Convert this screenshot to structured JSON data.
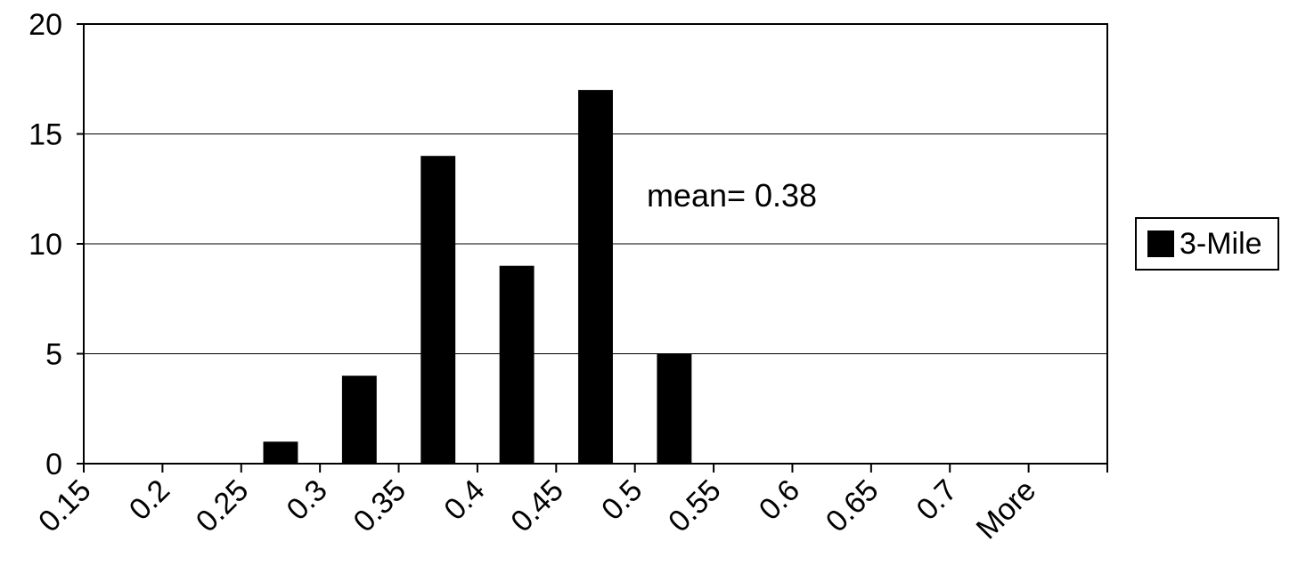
{
  "chart_data": {
    "type": "bar",
    "categories": [
      "0.15",
      "0.2",
      "0.25",
      "0.3",
      "0.35",
      "0.4",
      "0.45",
      "0.5",
      "0.55",
      "0.6",
      "0.65",
      "0.7",
      "More"
    ],
    "series": [
      {
        "name": "3-Mile",
        "values": [
          0,
          0,
          1,
          4,
          14,
          9,
          17,
          5,
          0,
          0,
          0,
          0,
          0
        ]
      }
    ],
    "ylim": [
      0,
      20
    ],
    "yticks": [
      0,
      5,
      10,
      15,
      20
    ],
    "grid": true,
    "legend_position": "right",
    "annotation": "mean= 0.38",
    "bar_color": "#000000"
  }
}
